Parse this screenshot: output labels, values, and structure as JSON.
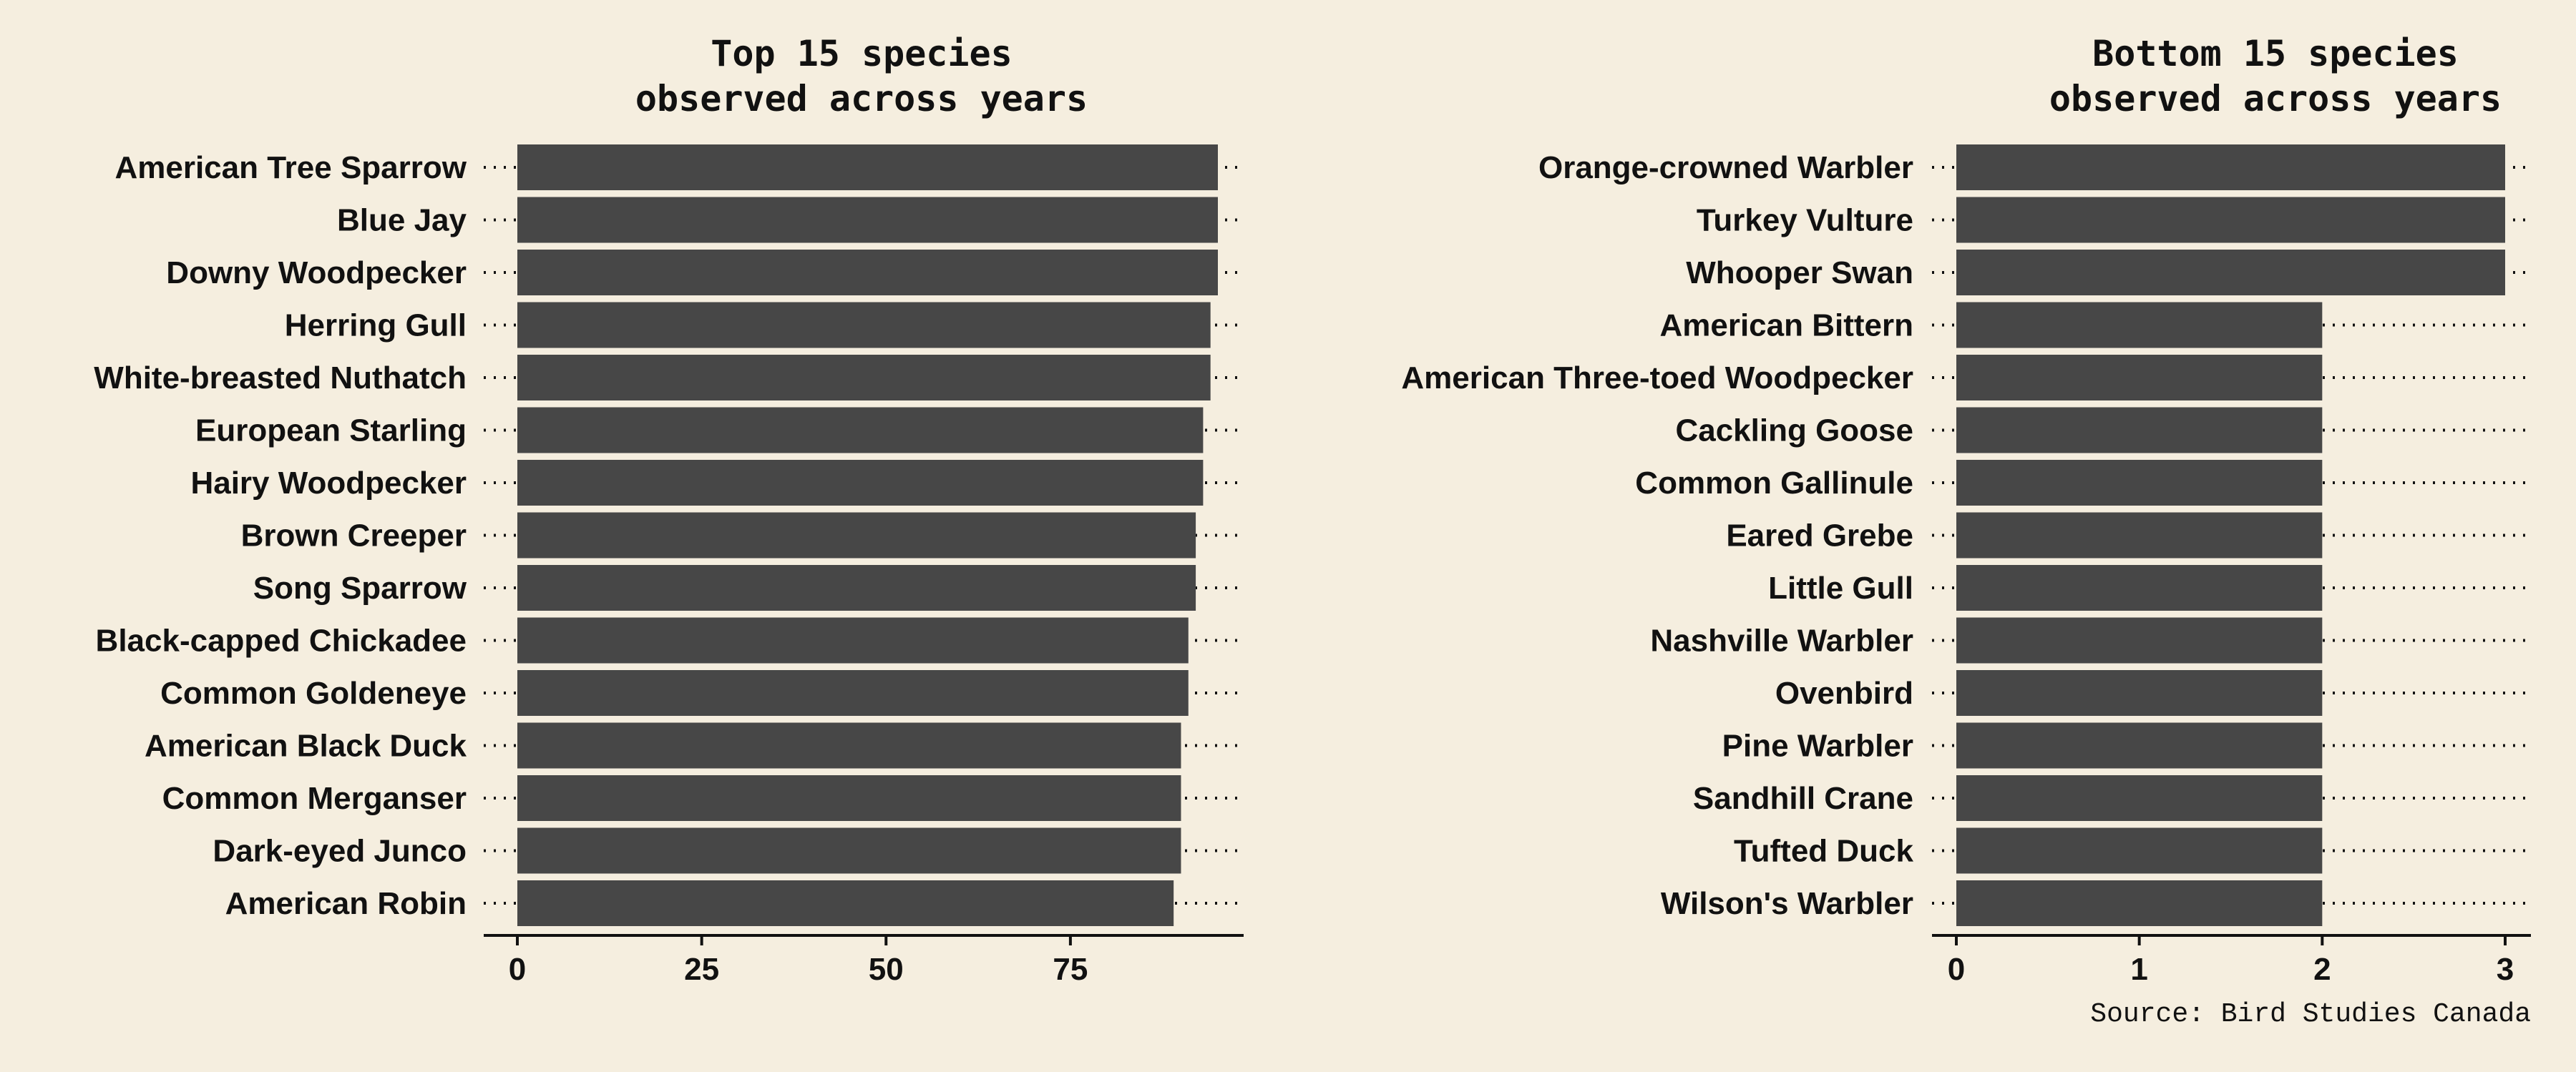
{
  "colors": {
    "background": "#F5EEDF",
    "bar": "#474747",
    "text": "#111111"
  },
  "caption": "Source: Bird Studies Canada",
  "chart_data": [
    {
      "type": "bar",
      "orientation": "horizontal",
      "title_lines": [
        "Top 15 species",
        "observed across years"
      ],
      "xlabel": "",
      "ylabel": "",
      "xlim": [
        0,
        95
      ],
      "x_ticks": [
        0,
        25,
        50,
        75
      ],
      "grid": false,
      "dotted_leaders": true,
      "categories": [
        "American Tree Sparrow",
        "Blue Jay",
        "Downy Woodpecker",
        "Herring Gull",
        "White-breasted Nuthatch",
        "European Starling",
        "Hairy Woodpecker",
        "Brown Creeper",
        "Song Sparrow",
        "Black-capped Chickadee",
        "Common Goldeneye",
        "American Black Duck",
        "Common Merganser",
        "Dark-eyed Junco",
        "American Robin"
      ],
      "values": [
        95,
        95,
        95,
        94,
        94,
        93,
        93,
        92,
        92,
        91,
        91,
        90,
        90,
        90,
        89
      ]
    },
    {
      "type": "bar",
      "orientation": "horizontal",
      "title_lines": [
        "Bottom 15 species",
        "observed across years"
      ],
      "xlabel": "",
      "ylabel": "",
      "xlim": [
        0,
        3
      ],
      "x_ticks": [
        0,
        1,
        2,
        3
      ],
      "grid": false,
      "dotted_leaders": true,
      "categories": [
        "Orange-crowned Warbler",
        "Turkey Vulture",
        "Whooper Swan",
        "American Bittern",
        "American Three-toed Woodpecker",
        "Cackling Goose",
        "Common Gallinule",
        "Eared Grebe",
        "Little Gull",
        "Nashville Warbler",
        "Ovenbird",
        "Pine Warbler",
        "Sandhill Crane",
        "Tufted Duck",
        "Wilson's Warbler"
      ],
      "values": [
        3,
        3,
        3,
        2,
        2,
        2,
        2,
        2,
        2,
        2,
        2,
        2,
        2,
        2,
        2
      ]
    }
  ]
}
